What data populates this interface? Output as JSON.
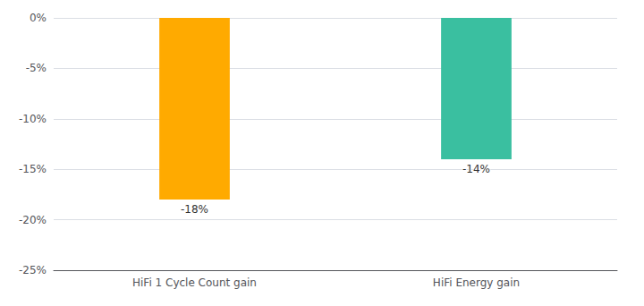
{
  "chart_data": {
    "type": "bar",
    "categories": [
      "HiFi 1 Cycle Count gain",
      "HiFi Energy gain"
    ],
    "values": [
      -18,
      -14
    ],
    "value_labels": [
      "-18%",
      "-14%"
    ],
    "data_labels": true,
    "colors": [
      "#FFAA00",
      "#3ABFA0"
    ],
    "ylim": [
      -25,
      0
    ],
    "yticks": [
      {
        "value": 0,
        "label": "0%"
      },
      {
        "value": -5,
        "label": "-5%"
      },
      {
        "value": -10,
        "label": "-10%"
      },
      {
        "value": -15,
        "label": "-15%"
      },
      {
        "value": -20,
        "label": "-20%"
      },
      {
        "value": -25,
        "label": "-25%"
      }
    ],
    "grid": true
  }
}
